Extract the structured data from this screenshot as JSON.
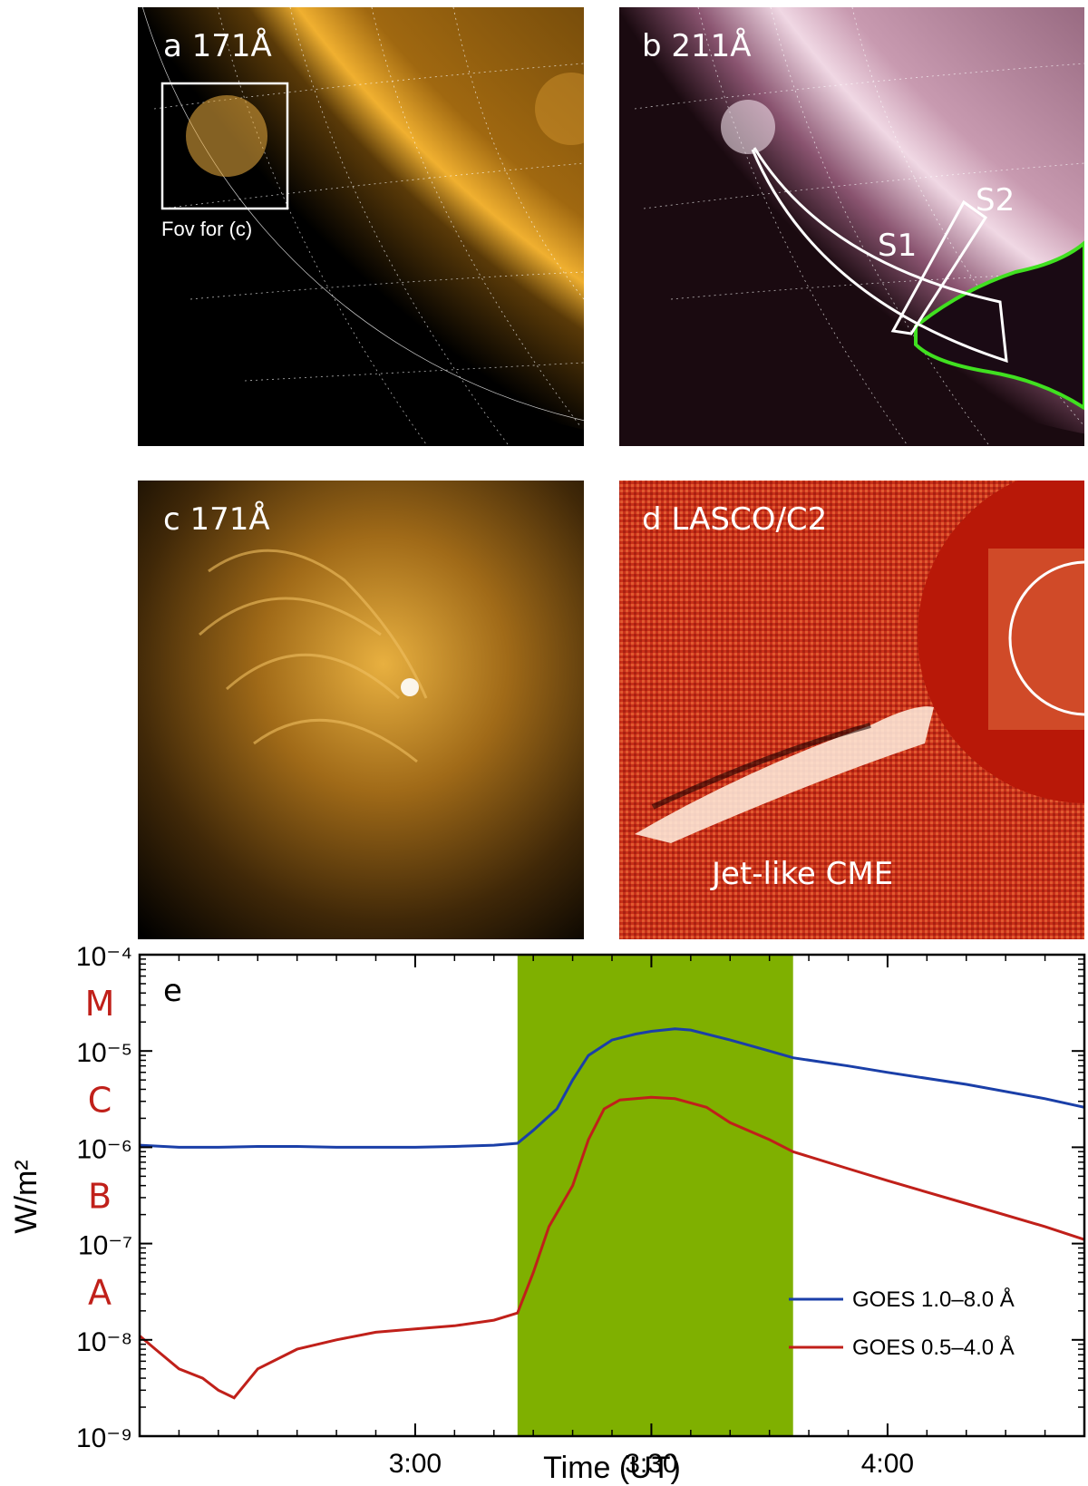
{
  "panels": {
    "a": {
      "label": "a 171Å",
      "box_caption": "Fov for (c)"
    },
    "b": {
      "label": "b 211Å",
      "slit1": "S1",
      "slit2": "S2"
    },
    "c": {
      "label": "c 171Å"
    },
    "d": {
      "label": "d LASCO/C2",
      "caption": "Jet-like CME"
    }
  },
  "colors": {
    "aia171": "#e8a020",
    "aia211": "#b8849a",
    "lasco": "#c8301a",
    "goes_long": "#1a3fa8",
    "goes_short": "#c0201a",
    "shade": "#7fb000",
    "chole": "#40e020"
  },
  "chart_data": {
    "type": "line",
    "panel_label": "e",
    "xlabel": "Time (UT)",
    "ylabel": "W/m²",
    "y_scale": "log",
    "ylim": [
      1e-09,
      0.0001
    ],
    "xlim": [
      "02:25",
      "04:25"
    ],
    "x_ticks": [
      "3:00",
      "3:30",
      "4:00"
    ],
    "y_ticks": [
      "10⁻⁹",
      "10⁻⁸",
      "10⁻⁷",
      "10⁻⁶",
      "10⁻⁵",
      "10⁻⁴"
    ],
    "flare_classes": [
      "A",
      "B",
      "C",
      "M"
    ],
    "shaded_interval": [
      "03:13",
      "03:48"
    ],
    "legend_position": "bottom-right",
    "series": [
      {
        "name": "GOES 1.0–8.0 Å",
        "color": "#1a3fa8",
        "x": [
          "02:25",
          "02:30",
          "02:35",
          "02:40",
          "02:45",
          "02:50",
          "02:55",
          "03:00",
          "03:05",
          "03:10",
          "03:13",
          "03:15",
          "03:18",
          "03:20",
          "03:22",
          "03:25",
          "03:28",
          "03:30",
          "03:33",
          "03:35",
          "03:40",
          "03:45",
          "03:48",
          "03:55",
          "04:00",
          "04:10",
          "04:20",
          "04:25"
        ],
        "y": [
          1.05e-06,
          1e-06,
          1e-06,
          1.02e-06,
          1.02e-06,
          1e-06,
          1e-06,
          1e-06,
          1.02e-06,
          1.05e-06,
          1.1e-06,
          1.5e-06,
          2.5e-06,
          5e-06,
          9e-06,
          1.3e-05,
          1.5e-05,
          1.6e-05,
          1.7e-05,
          1.65e-05,
          1.3e-05,
          1e-05,
          8.5e-06,
          7e-06,
          6e-06,
          4.5e-06,
          3.2e-06,
          2.6e-06
        ]
      },
      {
        "name": "GOES 0.5–4.0 Å",
        "color": "#c0201a",
        "x": [
          "02:25",
          "02:27",
          "02:30",
          "02:33",
          "02:35",
          "02:37",
          "02:40",
          "02:45",
          "02:50",
          "02:55",
          "03:00",
          "03:05",
          "03:10",
          "03:13",
          "03:15",
          "03:17",
          "03:20",
          "03:22",
          "03:24",
          "03:26",
          "03:30",
          "03:33",
          "03:37",
          "03:40",
          "03:45",
          "03:48",
          "03:55",
          "04:00",
          "04:10",
          "04:20",
          "04:25"
        ],
        "y": [
          1.1e-08,
          8e-09,
          5e-09,
          4e-09,
          3e-09,
          2.5e-09,
          5e-09,
          8e-09,
          1e-08,
          1.2e-08,
          1.3e-08,
          1.4e-08,
          1.6e-08,
          1.9e-08,
          5e-08,
          1.5e-07,
          4e-07,
          1.2e-06,
          2.5e-06,
          3.1e-06,
          3.3e-06,
          3.2e-06,
          2.6e-06,
          1.8e-06,
          1.2e-06,
          9e-07,
          6e-07,
          4.5e-07,
          2.6e-07,
          1.5e-07,
          1.1e-07
        ]
      }
    ]
  }
}
